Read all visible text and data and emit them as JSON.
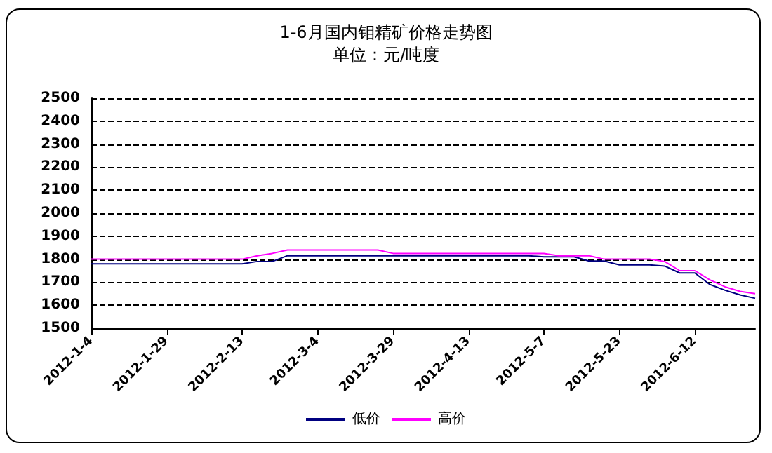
{
  "chart_data": {
    "type": "line",
    "title": "1-6月国内钼精矿价格走势图",
    "subtitle": "单位：元/吨度",
    "categories": [
      "2012-1-4",
      null,
      null,
      null,
      null,
      "2012-1-29",
      null,
      null,
      null,
      null,
      "2012-2-13",
      null,
      null,
      null,
      null,
      "2012-3-4",
      null,
      null,
      null,
      null,
      "2012-3-29",
      null,
      null,
      null,
      null,
      "2012-4-13",
      null,
      null,
      null,
      null,
      "2012-5-7",
      null,
      null,
      null,
      null,
      "2012-5-23",
      null,
      null,
      null,
      null,
      "2012-6-12",
      null,
      null,
      null,
      null
    ],
    "series": [
      {
        "name": "低价",
        "color": "#000080",
        "values": [
          1780,
          1780,
          1780,
          1780,
          1780,
          1780,
          1780,
          1780,
          1780,
          1780,
          1780,
          1790,
          1790,
          1815,
          1815,
          1815,
          1815,
          1815,
          1815,
          1815,
          1815,
          1815,
          1815,
          1815,
          1815,
          1815,
          1815,
          1815,
          1815,
          1815,
          1810,
          1810,
          1810,
          1792,
          1792,
          1775,
          1775,
          1775,
          1770,
          1740,
          1740,
          1690,
          1665,
          1645,
          1630
        ]
      },
      {
        "name": "高价",
        "color": "#ff00ff",
        "values": [
          1800,
          1800,
          1800,
          1800,
          1800,
          1800,
          1800,
          1800,
          1800,
          1800,
          1800,
          1815,
          1825,
          1840,
          1840,
          1840,
          1840,
          1840,
          1840,
          1840,
          1825,
          1825,
          1825,
          1825,
          1825,
          1825,
          1825,
          1825,
          1825,
          1825,
          1825,
          1815,
          1815,
          1815,
          1800,
          1800,
          1800,
          1800,
          1790,
          1750,
          1750,
          1710,
          1680,
          1660,
          1650
        ]
      }
    ],
    "ylim": [
      1500,
      2500
    ],
    "yticks": [
      1500,
      1600,
      1700,
      1800,
      1900,
      2000,
      2100,
      2200,
      2300,
      2400,
      2500
    ],
    "grid": "y",
    "legend": "bottom",
    "marker": "none",
    "line_style": "solid"
  }
}
